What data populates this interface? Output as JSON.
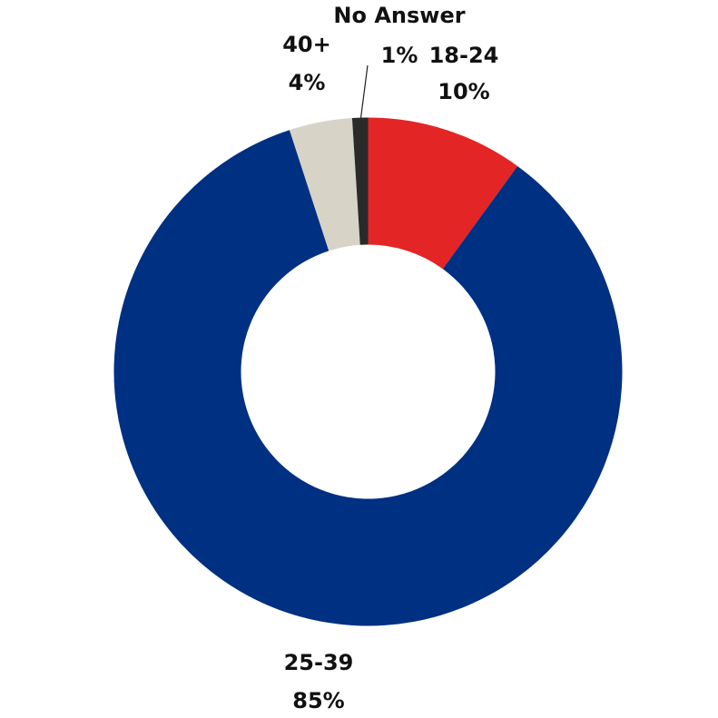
{
  "chart_data": {
    "type": "donut",
    "categories": [
      "18-24",
      "25-39",
      "40+",
      "No Answer"
    ],
    "values": [
      10,
      85,
      4,
      1
    ],
    "value_labels": [
      "10%",
      "85%",
      "4%",
      "1%"
    ],
    "colors": [
      "#e32526",
      "#003082",
      "#d7d3c6",
      "#2a2a2a"
    ]
  }
}
